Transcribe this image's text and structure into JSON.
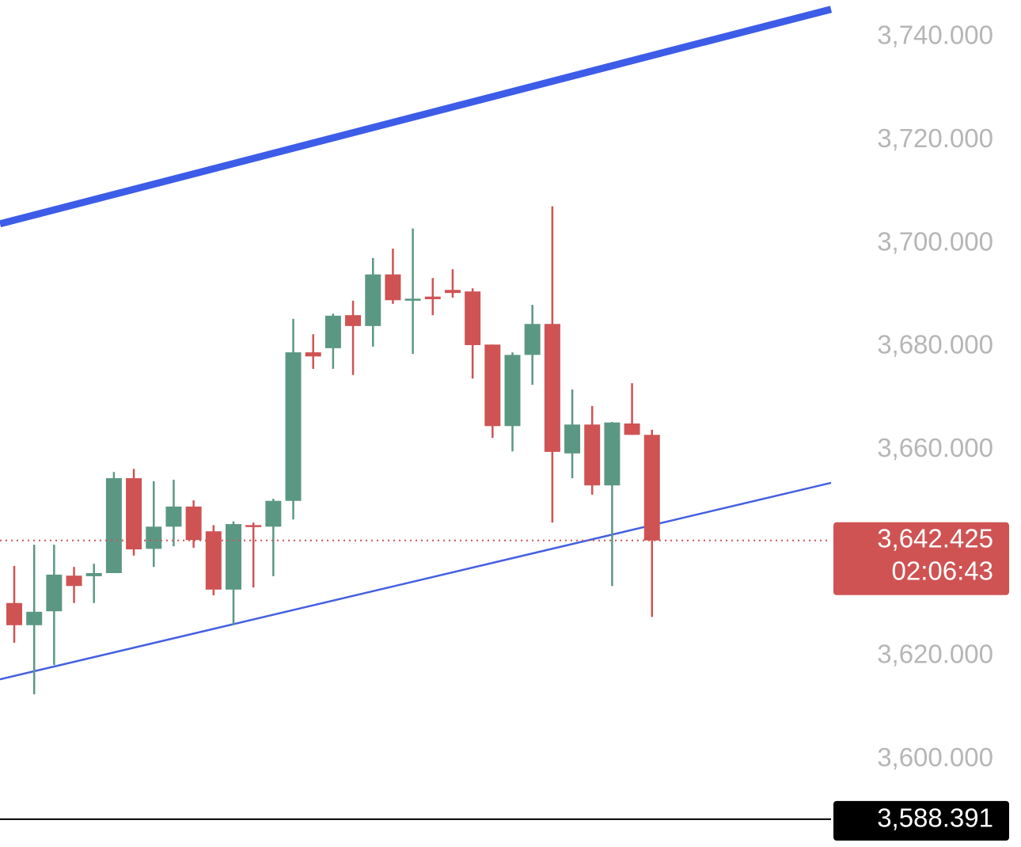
{
  "chart_data": {
    "type": "candlestick",
    "ylim": [
      3583.0,
      3747.2
    ],
    "yticks": [
      {
        "value": 3600,
        "label": "3,600.000"
      },
      {
        "value": 3620,
        "label": "3,620.000"
      },
      {
        "value": 3660,
        "label": "3,660.000"
      },
      {
        "value": 3680,
        "label": "3,680.000"
      },
      {
        "value": 3700,
        "label": "3,700.000"
      },
      {
        "value": 3720,
        "label": "3,720.000"
      },
      {
        "value": 3740,
        "label": "3,740.000"
      }
    ],
    "up_color": "#5b9884",
    "down_color": "#cf5353",
    "open": [
      3630.3,
      3626.0,
      3628.7,
      3635.6,
      3635.5,
      3636.1,
      3654.5,
      3640.8,
      3645.1,
      3649.0,
      3644.2,
      3632.9,
      3645.4,
      3645.1,
      3650.1,
      3678.9,
      3679.7,
      3686.1,
      3684.0,
      3694.0,
      3688.9,
      3689.7,
      3691.0,
      3690.7,
      3680.4,
      3664.6,
      3678.4,
      3684.4,
      3659.3,
      3664.9,
      3653.1,
      3665.1,
      3662.9
    ],
    "high": [
      3637.5,
      3641.6,
      3641.6,
      3637.3,
      3637.9,
      3655.7,
      3656.3,
      3653.9,
      3654.2,
      3650.2,
      3645.4,
      3646.1,
      3645.9,
      3650.5,
      3685.4,
      3682.4,
      3686.4,
      3688.9,
      3697.2,
      3699.0,
      3702.9,
      3693.3,
      3695.0,
      3691.3,
      3680.4,
      3678.9,
      3688.1,
      3707.2,
      3671.7,
      3668.5,
      3665.4,
      3672.9,
      3663.9
    ],
    "low": [
      3622.6,
      3612.6,
      3618.3,
      3630.3,
      3630.3,
      3636.1,
      3639.5,
      3637.3,
      3641.3,
      3641.0,
      3631.8,
      3626.0,
      3633.3,
      3635.5,
      3646.5,
      3675.7,
      3675.7,
      3674.5,
      3680.0,
      3688.3,
      3678.6,
      3686.1,
      3689.5,
      3673.8,
      3662.3,
      3659.7,
      3672.6,
      3645.9,
      3654.5,
      3651.3,
      3633.6,
      3662.9,
      3627.6
    ],
    "close": [
      3626.0,
      3628.6,
      3635.8,
      3633.6,
      3636.1,
      3654.5,
      3640.7,
      3645.1,
      3649.0,
      3642.5,
      3632.9,
      3645.6,
      3645.1,
      3650.1,
      3678.9,
      3678.1,
      3686.0,
      3684.0,
      3694.0,
      3689.0,
      3689.3,
      3689.2,
      3690.4,
      3680.3,
      3664.6,
      3678.4,
      3684.4,
      3659.6,
      3664.9,
      3653.1,
      3665.3,
      3662.9,
      3642.425
    ],
    "current_price": {
      "value": 3642.425,
      "label": "3,642.425",
      "countdown": "02:06:43",
      "color": "#cf5353"
    },
    "level": {
      "value": 3588.391,
      "label": "3,588.391",
      "color": "#000000"
    },
    "trendlines": [
      {
        "color": "#3d5ce8",
        "start": 3703.8,
        "end": 3745.4
      },
      {
        "color": "#4460e0",
        "start": 3615.5,
        "end": 3653.6
      }
    ]
  }
}
